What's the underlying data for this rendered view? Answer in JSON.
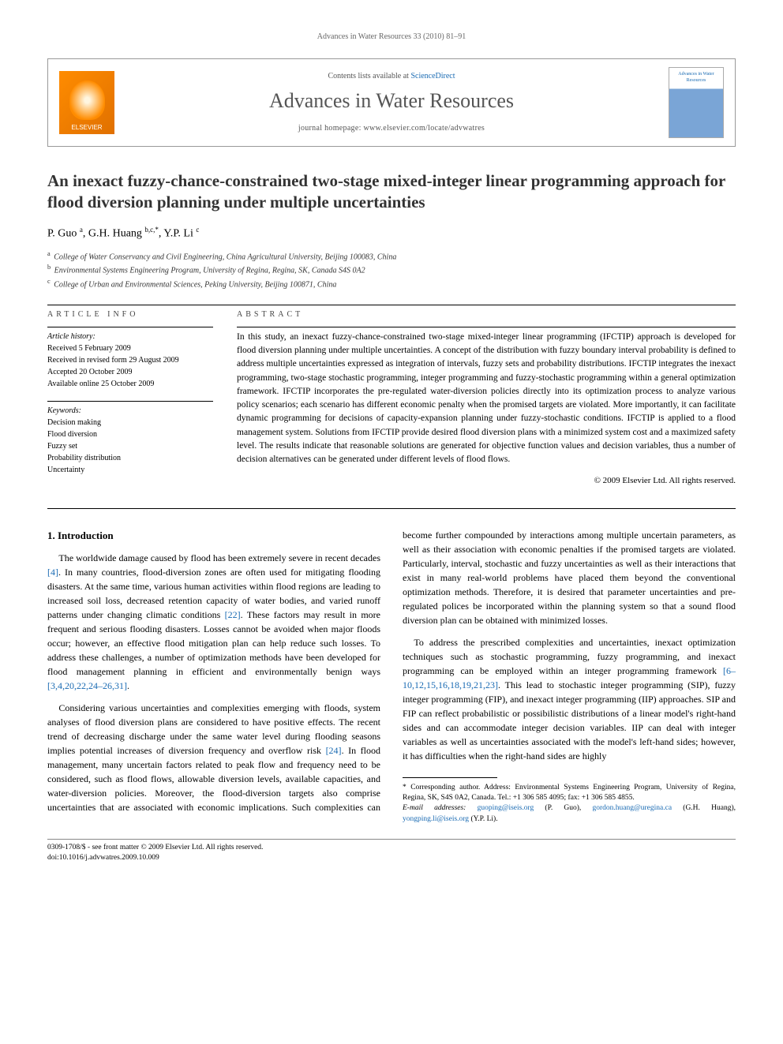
{
  "running_head": "Advances in Water Resources 33 (2010) 81–91",
  "header": {
    "contents_prefix": "Contents lists available at ",
    "contents_link": "ScienceDirect",
    "journal": "Advances in Water Resources",
    "homepage_label": "journal homepage: ",
    "homepage_url": "www.elsevier.com/locate/advwatres",
    "publisher": "ELSEVIER",
    "cover_text": "Advances in Water Resources"
  },
  "title": "An inexact fuzzy-chance-constrained two-stage mixed-integer linear programming approach for flood diversion planning under multiple uncertainties",
  "authors_html": "P. Guo <sup>a</sup>, G.H. Huang <sup>b,c,*</sup>, Y.P. Li <sup>c</sup>",
  "affiliations": [
    {
      "sup": "a",
      "text": "College of Water Conservancy and Civil Engineering, China Agricultural University, Beijing 100083, China"
    },
    {
      "sup": "b",
      "text": "Environmental Systems Engineering Program, University of Regina, Regina, SK, Canada S4S 0A2"
    },
    {
      "sup": "c",
      "text": "College of Urban and Environmental Sciences, Peking University, Beijing 100871, China"
    }
  ],
  "info": {
    "heading": "article info",
    "history_label": "Article history:",
    "history": [
      "Received 5 February 2009",
      "Received in revised form 29 August 2009",
      "Accepted 20 October 2009",
      "Available online 25 October 2009"
    ],
    "keywords_label": "Keywords:",
    "keywords": [
      "Decision making",
      "Flood diversion",
      "Fuzzy set",
      "Probability distribution",
      "Uncertainty"
    ]
  },
  "abstract": {
    "heading": "abstract",
    "text": "In this study, an inexact fuzzy-chance-constrained two-stage mixed-integer linear programming (IFCTIP) approach is developed for flood diversion planning under multiple uncertainties. A concept of the distribution with fuzzy boundary interval probability is defined to address multiple uncertainties expressed as integration of intervals, fuzzy sets and probability distributions. IFCTIP integrates the inexact programming, two-stage stochastic programming, integer programming and fuzzy-stochastic programming within a general optimization framework. IFCTIP incorporates the pre-regulated water-diversion policies directly into its optimization process to analyze various policy scenarios; each scenario has different economic penalty when the promised targets are violated. More importantly, it can facilitate dynamic programming for decisions of capacity-expansion planning under fuzzy-stochastic conditions. IFCTIP is applied to a flood management system. Solutions from IFCTIP provide desired flood diversion plans with a minimized system cost and a maximized safety level. The results indicate that reasonable solutions are generated for objective function values and decision variables, thus a number of decision alternatives can be generated under different levels of flood flows.",
    "copyright": "© 2009 Elsevier Ltd. All rights reserved."
  },
  "section1": {
    "heading": "1. Introduction",
    "p1_a": "The worldwide damage caused by flood has been extremely severe in recent decades ",
    "p1_ref1": "[4]",
    "p1_b": ". In many countries, flood-diversion zones are often used for mitigating flooding disasters. At the same time, various human activities within flood regions are leading to increased soil loss, decreased retention capacity of water bodies, and varied runoff patterns under changing climatic conditions ",
    "p1_ref2": "[22]",
    "p1_c": ". These factors may result in more frequent and serious flooding disasters. Losses cannot be avoided when major floods occur; however, an effective flood mitigation plan can help reduce such losses. To address these challenges, a number of optimization methods have been developed for flood management planning in efficient and environmentally benign ways ",
    "p1_ref3": "[3,4,20,22,24–26,31]",
    "p1_d": ".",
    "p2_a": "Considering various uncertainties and complexities emerging with floods, system analyses of flood diversion plans are considered to have positive effects. The recent trend of decreasing discharge under the same water level during flooding seasons implies potential increases of diversion frequency and overflow risk ",
    "p2_ref1": "[24]",
    "p2_b": ". In flood management, many uncertain factors related to peak flow and frequency need to be considered, such as flood flows, allowable diversion levels, available capacities, and water-diversion policies. Moreover, the flood-diversion targets also comprise uncertainties that are associated with economic implications. Such complexities can become further compounded by interactions among multiple uncertain parameters, as well as their association with economic penalties if the promised targets are violated. Particularly, interval, stochastic and fuzzy uncertainties as well as their interactions that exist in many real-world problems have placed them beyond the conventional optimization methods. Therefore, it is desired that parameter uncertainties and pre-regulated polices be incorporated within the planning system so that a sound flood diversion plan can be obtained with minimized losses.",
    "p3_a": "To address the prescribed complexities and uncertainties, inexact optimization techniques such as stochastic programming, fuzzy programming, and inexact programming can be employed within an integer programming framework ",
    "p3_ref1": "[6–10,12,15,16,18,19,21,23]",
    "p3_b": ". This lead to stochastic integer programming (SIP), fuzzy integer programming (FIP), and inexact integer programming (IIP) approaches. SIP and FIP can reflect probabilistic or possibilistic distributions of a linear model's right-hand sides and can accommodate integer decision variables. IIP can deal with integer variables as well as uncertainties associated with the model's left-hand sides; however, it has difficulties when the right-hand sides are highly"
  },
  "footnotes": {
    "corr_label": "* Corresponding author. Address: Environmental Systems Engineering Program, University of Regina, Regina, SK, S4S 0A2, Canada. Tel.: +1 306 585 4095; fax: +1 306 585 4855.",
    "email_label": "E-mail addresses: ",
    "emails": [
      {
        "addr": "guoping@iseis.org",
        "who": " (P. Guo), "
      },
      {
        "addr": "gordon.huang@uregina.ca",
        "who": " (G.H. Huang), "
      },
      {
        "addr": "yongping.li@iseis.org",
        "who": " (Y.P. Li)."
      }
    ]
  },
  "footer": {
    "left1": "0309-1708/$ - see front matter © 2009 Elsevier Ltd. All rights reserved.",
    "left2": "doi:10.1016/j.advwatres.2009.10.009"
  }
}
